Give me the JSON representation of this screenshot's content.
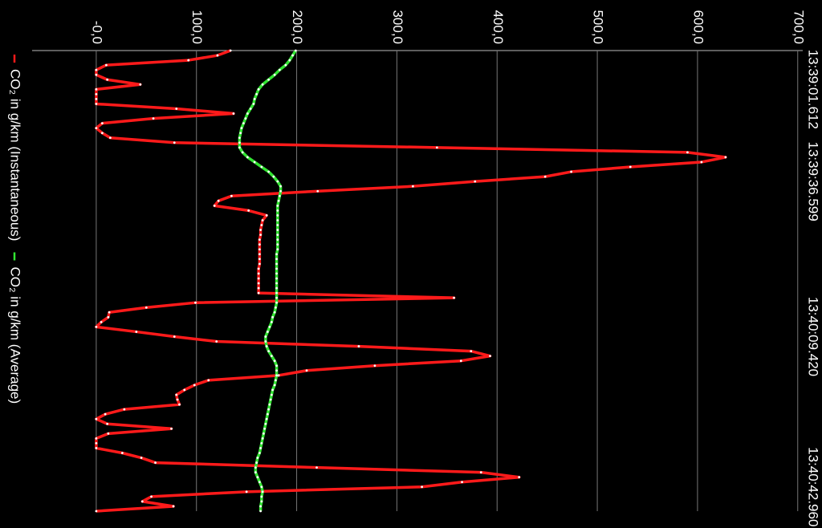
{
  "chart_data": {
    "type": "line",
    "categories": [
      null,
      null,
      null,
      null,
      null,
      null,
      null,
      null,
      "13:39:01.612",
      null,
      null,
      null,
      null,
      null,
      null,
      null,
      null,
      null,
      null,
      null,
      null,
      null,
      null,
      null,
      null,
      null,
      null,
      "13:39:36.599",
      null,
      null,
      null,
      null,
      null,
      null,
      null,
      null,
      null,
      null,
      null,
      null,
      null,
      null,
      null,
      null,
      null,
      null,
      null,
      null,
      null,
      null,
      null,
      null,
      null,
      null,
      null,
      null,
      null,
      null,
      null,
      "13:40:09.420",
      null,
      null,
      null,
      null,
      null,
      null,
      null,
      null,
      null,
      null,
      null,
      null,
      null,
      null,
      null,
      null,
      null,
      null,
      null,
      null,
      null,
      null,
      null,
      null,
      null,
      null,
      null,
      null,
      null,
      null,
      "13:40:42.960",
      null,
      null,
      null,
      null,
      null
    ],
    "series": [
      {
        "name": "CO₂ in g/km (Instantaneous)",
        "color": "#ff1a1a",
        "values": [
          134,
          121,
          92,
          10,
          0,
          0,
          11,
          44,
          0,
          0,
          0,
          0,
          80,
          137,
          57,
          6,
          0,
          6,
          14,
          78,
          340,
          590,
          628,
          604,
          533,
          474,
          448,
          378,
          316,
          221,
          135,
          122,
          118,
          152,
          170,
          166,
          165,
          164,
          164,
          163,
          163,
          163,
          163,
          163,
          163,
          162,
          162,
          162,
          162,
          162,
          162,
          357,
          99,
          50,
          13,
          12,
          5,
          0,
          40,
          78,
          120,
          262,
          374,
          393,
          364,
          278,
          210,
          182,
          112,
          98,
          88,
          80,
          81,
          83,
          28,
          9,
          0,
          11,
          75,
          12,
          0,
          0,
          0,
          26,
          45,
          59,
          220,
          384,
          422,
          365,
          325,
          150,
          55,
          46,
          77,
          0
        ]
      },
      {
        "name": "CO₂ in g/km (Average)",
        "color": "#33e633",
        "values": [
          199,
          196,
          193,
          189,
          183,
          178,
          172,
          166,
          162,
          160,
          158,
          157,
          154,
          151,
          149,
          147,
          145,
          144,
          143,
          143,
          143,
          146,
          151,
          158,
          165,
          172,
          177,
          181,
          184,
          184,
          183,
          182,
          181,
          181,
          181,
          181,
          181,
          181,
          181,
          181,
          181,
          181,
          180,
          180,
          180,
          180,
          180,
          180,
          180,
          180,
          180,
          180,
          180,
          179,
          178,
          176,
          175,
          173,
          171,
          169,
          169,
          170,
          172,
          175,
          178,
          180,
          180,
          180,
          179,
          178,
          176,
          175,
          174,
          173,
          172,
          171,
          170,
          169,
          168,
          167,
          166,
          165,
          164,
          163,
          161,
          160,
          159,
          159,
          161,
          163,
          165,
          166,
          165,
          165,
          164,
          164
        ]
      }
    ],
    "ylim": [
      -64,
      705
    ],
    "yticks": [
      {
        "value": 0,
        "label": "-0,0"
      },
      {
        "value": 100,
        "label": "100,0"
      },
      {
        "value": 200,
        "label": "200,0"
      },
      {
        "value": 300,
        "label": "300,0"
      },
      {
        "value": 400,
        "label": "400,0"
      },
      {
        "value": 500,
        "label": "500,0"
      },
      {
        "value": 600,
        "label": "600,0"
      },
      {
        "value": 700,
        "label": "700,0"
      }
    ],
    "grid": true
  }
}
